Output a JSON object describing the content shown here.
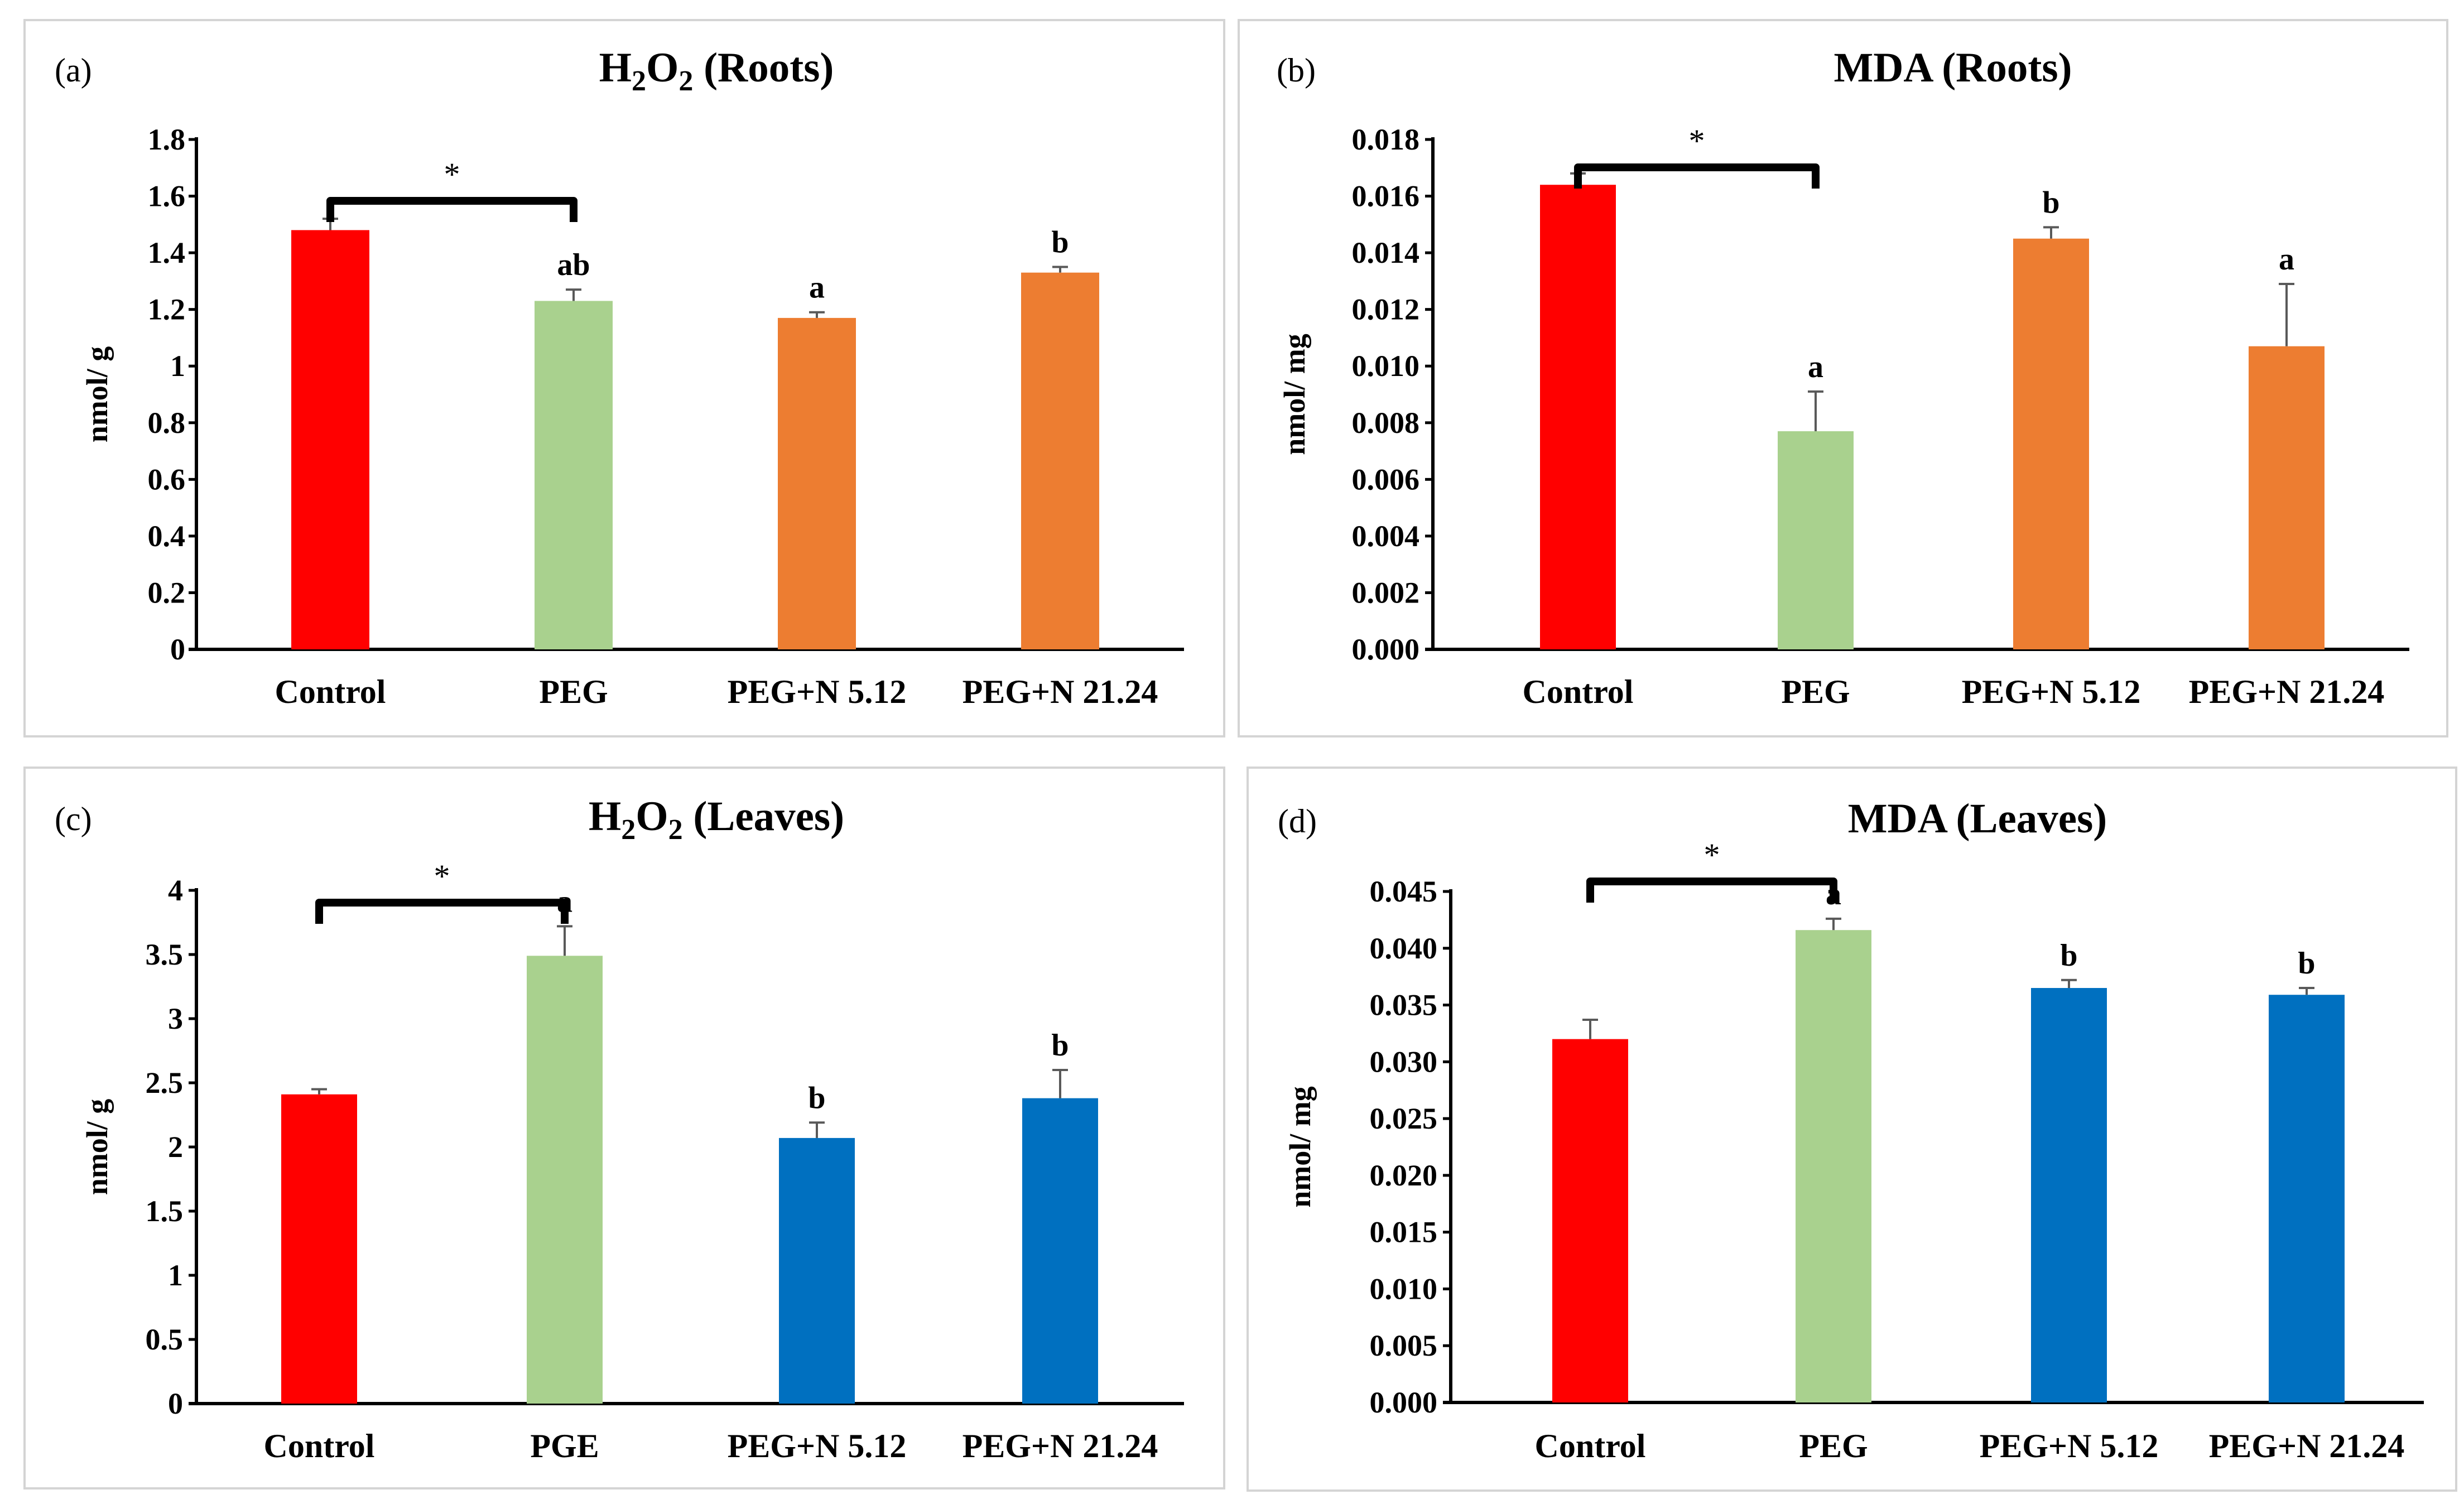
{
  "chart_data": [
    {
      "type": "bar",
      "panel_label": "(a)",
      "title": "H2O2 (Roots)",
      "title_main": "H",
      "title_sub": "2",
      "title_rest": "O",
      "title_sub2": "2",
      "title_tail": " (Roots)",
      "ylabel": "nmol/ g",
      "categories": [
        "Control",
        "PEG",
        "PEG+N 5.12",
        "PEG+N 21.24"
      ],
      "values": [
        1.48,
        1.23,
        1.17,
        1.33
      ],
      "errors": [
        0.04,
        0.04,
        0.02,
        0.02
      ],
      "letters": [
        "",
        "ab",
        "a",
        "b"
      ],
      "colors": [
        "#ff0000",
        "#a9d18e",
        "#ed7d31",
        "#ed7d31"
      ],
      "ylim": [
        0,
        1.8
      ],
      "yticks": [
        "0",
        "0.2",
        "0.4",
        "0.6",
        "0.8",
        "1",
        "1.2",
        "1.4",
        "1.6",
        "1.8"
      ],
      "significance": {
        "from": 0,
        "to": 1,
        "label": "*"
      }
    },
    {
      "type": "bar",
      "panel_label": "(b)",
      "title": "MDA (Roots)",
      "ylabel": "nmol/ mg",
      "categories": [
        "Control",
        "PEG",
        "PEG+N 5.12",
        "PEG+N 21.24"
      ],
      "values": [
        0.0164,
        0.0077,
        0.0145,
        0.0107
      ],
      "errors": [
        0.0004,
        0.0014,
        0.0004,
        0.0022
      ],
      "letters": [
        "",
        "a",
        "b",
        "a"
      ],
      "colors": [
        "#ff0000",
        "#a9d18e",
        "#ed7d31",
        "#ed7d31"
      ],
      "ylim": [
        0,
        0.018
      ],
      "yticks": [
        "0.000",
        "0.002",
        "0.004",
        "0.006",
        "0.008",
        "0.010",
        "0.012",
        "0.014",
        "0.016",
        "0.018"
      ],
      "significance": {
        "from": 0,
        "to": 1,
        "label": "*"
      }
    },
    {
      "type": "bar",
      "panel_label": "(c)",
      "title": "H2O2 (Leaves)",
      "title_main": "H",
      "title_sub": "2",
      "title_rest": "O",
      "title_sub2": "2",
      "title_tail": " (Leaves)",
      "ylabel": "nmol/ g",
      "categories": [
        "Control",
        "PGE",
        "PEG+N 5.12",
        "PEG+N 21.24"
      ],
      "values": [
        2.41,
        3.49,
        2.07,
        2.38
      ],
      "errors": [
        0.04,
        0.23,
        0.12,
        0.22
      ],
      "letters": [
        "",
        "a",
        "b",
        "b"
      ],
      "colors": [
        "#ff0000",
        "#a9d18e",
        "#0070c0",
        "#0070c0"
      ],
      "ylim": [
        0,
        4
      ],
      "yticks": [
        "0",
        "0.5",
        "1",
        "1.5",
        "2",
        "2.5",
        "3",
        "3.5",
        "4"
      ],
      "significance": {
        "from": 0,
        "to": 1,
        "label": "*"
      }
    },
    {
      "type": "bar",
      "panel_label": "(d)",
      "title": "MDA (Leaves)",
      "ylabel": "nmol/ mg",
      "categories": [
        "Control",
        "PEG",
        "PEG+N 5.12",
        "PEG+N 21.24"
      ],
      "values": [
        0.032,
        0.0416,
        0.0365,
        0.0359
      ],
      "errors": [
        0.0017,
        0.001,
        0.0007,
        0.0006
      ],
      "letters": [
        "",
        "a",
        "b",
        "b"
      ],
      "colors": [
        "#ff0000",
        "#a9d18e",
        "#0070c0",
        "#0070c0"
      ],
      "ylim": [
        0,
        0.045
      ],
      "yticks": [
        "0.000",
        "0.005",
        "0.010",
        "0.015",
        "0.020",
        "0.025",
        "0.030",
        "0.035",
        "0.040",
        "0.045"
      ],
      "significance": {
        "from": 0,
        "to": 1,
        "label": "*"
      }
    }
  ]
}
